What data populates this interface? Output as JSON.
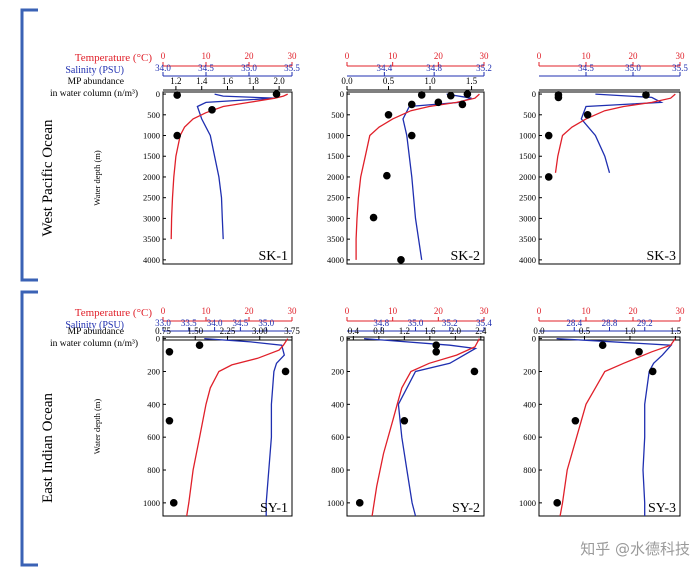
{
  "colors": {
    "temperature": "#e0202a",
    "salinity": "#1f2fb0",
    "abundance": "#000000",
    "bracket": "#3a62b5",
    "label_temp": "#e0202a",
    "label_sal": "#1f2fb0"
  },
  "legend": {
    "temp_label": "Temperature (°C)",
    "sal_label": "Salinity (PSU)",
    "mp_label_1": "MP abundance",
    "mp_label_2": "in water column (n/m³)"
  },
  "rows": [
    {
      "region": "West Pacific Ocean",
      "ylabel": "Water depth (m)"
    },
    {
      "region": "East Indian Ocean",
      "ylabel": "Water depth (m)"
    }
  ],
  "watermark": "知乎 @水德科技",
  "chart_data": [
    {
      "type": "line",
      "panel": "SK-1",
      "ylim": [
        4100,
        -50
      ],
      "yticks": [
        0,
        500,
        1000,
        1500,
        2000,
        2500,
        3000,
        3500,
        4000
      ],
      "temp_axis": {
        "range": [
          0,
          30
        ],
        "ticks": [
          0,
          10,
          20,
          30
        ]
      },
      "sal_axis": {
        "range": [
          34.0,
          35.5
        ],
        "ticks": [
          "34.0",
          "34.5",
          "35.0",
          "35.5"
        ]
      },
      "mp_axis": {
        "range": [
          1.1,
          2.1
        ],
        "ticks": [
          "1.2",
          "1.4",
          "1.6",
          "1.8",
          "2.0"
        ]
      },
      "temperature": [
        [
          29,
          0
        ],
        [
          28,
          50
        ],
        [
          26,
          100
        ],
        [
          20,
          200
        ],
        [
          14,
          300
        ],
        [
          10,
          450
        ],
        [
          7,
          600
        ],
        [
          5,
          800
        ],
        [
          4,
          1000
        ],
        [
          3,
          1500
        ],
        [
          2.5,
          2000
        ],
        [
          2.2,
          2500
        ],
        [
          2,
          3000
        ],
        [
          1.9,
          3500
        ]
      ],
      "salinity": [
        [
          34.6,
          0
        ],
        [
          34.7,
          50
        ],
        [
          35.3,
          100
        ],
        [
          34.5,
          200
        ],
        [
          34.4,
          300
        ],
        [
          34.45,
          600
        ],
        [
          34.55,
          1000
        ],
        [
          34.6,
          1500
        ],
        [
          34.65,
          2000
        ],
        [
          34.68,
          2500
        ],
        [
          34.69,
          3000
        ],
        [
          34.7,
          3500
        ]
      ],
      "abundance": [
        [
          1.98,
          0
        ],
        [
          1.21,
          25
        ],
        [
          1.48,
          380
        ],
        [
          1.21,
          1000
        ]
      ]
    },
    {
      "type": "line",
      "panel": "SK-2",
      "ylim": [
        4100,
        -50
      ],
      "yticks": [
        0,
        500,
        1000,
        1500,
        2000,
        2500,
        3000,
        3500,
        4000
      ],
      "temp_axis": {
        "range": [
          0,
          30
        ],
        "ticks": [
          0,
          10,
          20,
          30
        ]
      },
      "sal_axis": {
        "range": [
          34.1,
          35.2
        ],
        "ticks": [
          "34.4",
          "34.8",
          "35.2"
        ]
      },
      "mp_axis": {
        "range": [
          0.0,
          1.65
        ],
        "ticks": [
          "0.0",
          "0.5",
          "1.0",
          "1.5"
        ]
      },
      "temperature": [
        [
          29,
          0
        ],
        [
          28,
          100
        ],
        [
          24,
          200
        ],
        [
          18,
          300
        ],
        [
          14,
          400
        ],
        [
          10,
          600
        ],
        [
          7,
          800
        ],
        [
          5,
          1000
        ],
        [
          4,
          1500
        ],
        [
          3,
          2000
        ],
        [
          2.5,
          2500
        ],
        [
          2.2,
          3000
        ],
        [
          2,
          3500
        ],
        [
          2,
          4000
        ]
      ],
      "salinity": [
        [
          34.9,
          0
        ],
        [
          35.1,
          100
        ],
        [
          35.0,
          200
        ],
        [
          34.6,
          300
        ],
        [
          34.55,
          600
        ],
        [
          34.58,
          1000
        ],
        [
          34.62,
          2000
        ],
        [
          34.65,
          3000
        ],
        [
          34.7,
          4000
        ]
      ],
      "abundance": [
        [
          0.9,
          20
        ],
        [
          1.25,
          40
        ],
        [
          1.45,
          0
        ],
        [
          1.1,
          200
        ],
        [
          0.78,
          250
        ],
        [
          1.39,
          250
        ],
        [
          0.5,
          500
        ],
        [
          0.78,
          1000
        ],
        [
          0.48,
          1970
        ],
        [
          0.32,
          2980
        ],
        [
          0.65,
          4000
        ]
      ]
    },
    {
      "type": "line",
      "panel": "SK-3",
      "ylim": [
        4100,
        -50
      ],
      "yticks": [
        0,
        500,
        1000,
        1500,
        2000,
        2500,
        3000,
        3500,
        4000
      ],
      "temp_axis": {
        "range": [
          0,
          30
        ],
        "ticks": [
          0,
          10,
          20,
          30
        ]
      },
      "sal_axis": {
        "range": [
          34.0,
          35.5
        ],
        "ticks": [
          "34.5",
          "35.0",
          "35.5"
        ]
      },
      "mp_axis": {
        "range": [
          0,
          1.45
        ],
        "ticks": []
      },
      "temperature": [
        [
          29,
          0
        ],
        [
          28,
          100
        ],
        [
          24,
          200
        ],
        [
          18,
          300
        ],
        [
          14,
          400
        ],
        [
          10,
          600
        ],
        [
          7,
          800
        ],
        [
          5,
          1000
        ],
        [
          4,
          1500
        ],
        [
          3.5,
          1900
        ]
      ],
      "salinity": [
        [
          34.6,
          0
        ],
        [
          35.2,
          80
        ],
        [
          35.3,
          200
        ],
        [
          34.5,
          300
        ],
        [
          34.45,
          600
        ],
        [
          34.6,
          1000
        ],
        [
          34.7,
          1500
        ],
        [
          34.75,
          1900
        ]
      ],
      "abundance": [
        [
          0.2,
          20
        ],
        [
          0.2,
          80
        ],
        [
          1.1,
          20
        ],
        [
          0.5,
          500
        ],
        [
          0.1,
          1000
        ],
        [
          0.1,
          2000
        ]
      ]
    },
    {
      "type": "line",
      "panel": "SY-1",
      "ylim": [
        1080,
        -10
      ],
      "yticks": [
        0,
        200,
        400,
        600,
        800,
        1000
      ],
      "temp_axis": {
        "range": [
          0,
          30
        ],
        "ticks": [
          0,
          10,
          20,
          30
        ]
      },
      "sal_axis": {
        "range": [
          33.0,
          35.5
        ],
        "ticks": [
          "33.0",
          "33.5",
          "34.0",
          "34.5",
          "35.0"
        ]
      },
      "mp_axis": {
        "range": [
          0.75,
          3.75
        ],
        "ticks": [
          "0.75",
          "1.50",
          "2.25",
          "3.00",
          "3.75"
        ]
      },
      "temperature": [
        [
          29,
          0
        ],
        [
          28,
          40
        ],
        [
          27,
          70
        ],
        [
          22,
          120
        ],
        [
          16,
          160
        ],
        [
          13,
          200
        ],
        [
          11,
          300
        ],
        [
          10,
          400
        ],
        [
          8.5,
          600
        ],
        [
          7,
          800
        ],
        [
          6,
          1000
        ],
        [
          5.5,
          1080
        ]
      ],
      "salinity": [
        [
          33.8,
          0
        ],
        [
          34.7,
          20
        ],
        [
          35.3,
          40
        ],
        [
          35.35,
          100
        ],
        [
          35.2,
          150
        ],
        [
          35.15,
          200
        ],
        [
          35.1,
          400
        ],
        [
          35.1,
          600
        ],
        [
          35.05,
          800
        ],
        [
          35.0,
          1000
        ],
        [
          35.0,
          1080
        ]
      ],
      "abundance": [
        [
          1.6,
          40
        ],
        [
          0.9,
          80
        ],
        [
          3.6,
          200
        ],
        [
          0.9,
          500
        ],
        [
          1.0,
          1000
        ]
      ]
    },
    {
      "type": "line",
      "panel": "SY-2",
      "ylim": [
        1080,
        -10
      ],
      "yticks": [
        0,
        200,
        400,
        600,
        800,
        1000
      ],
      "temp_axis": {
        "range": [
          0,
          30
        ],
        "ticks": [
          0,
          10,
          20,
          30
        ]
      },
      "sal_axis": {
        "range": [
          34.6,
          35.4
        ],
        "ticks": [
          "34.8",
          "35.0",
          "35.2",
          "35.4"
        ]
      },
      "mp_axis": {
        "range": [
          0.3,
          2.45
        ],
        "ticks": [
          "0.4",
          "0.8",
          "1.2",
          "1.6",
          "2.0",
          "2.4"
        ]
      },
      "temperature": [
        [
          29,
          0
        ],
        [
          28,
          50
        ],
        [
          24,
          100
        ],
        [
          18,
          150
        ],
        [
          14,
          200
        ],
        [
          12,
          300
        ],
        [
          11,
          400
        ],
        [
          10,
          500
        ],
        [
          8,
          700
        ],
        [
          6.5,
          900
        ],
        [
          5.5,
          1080
        ]
      ],
      "salinity": [
        [
          34.7,
          0
        ],
        [
          35.2,
          40
        ],
        [
          35.35,
          60
        ],
        [
          35.2,
          150
        ],
        [
          35.0,
          200
        ],
        [
          34.9,
          400
        ],
        [
          34.92,
          600
        ],
        [
          34.95,
          800
        ],
        [
          34.98,
          1000
        ],
        [
          35.0,
          1080
        ]
      ],
      "abundance": [
        [
          1.7,
          40
        ],
        [
          1.7,
          80
        ],
        [
          2.3,
          200
        ],
        [
          1.2,
          500
        ],
        [
          0.5,
          1000
        ]
      ]
    },
    {
      "type": "line",
      "panel": "SY-3",
      "ylim": [
        1080,
        -10
      ],
      "yticks": [
        0,
        200,
        400,
        600,
        800,
        1000
      ],
      "temp_axis": {
        "range": [
          0,
          30
        ],
        "ticks": [
          0,
          10,
          20,
          30
        ]
      },
      "sal_axis": {
        "range": [
          28.0,
          29.6
        ],
        "ticks": [
          "28.4",
          "28.8",
          "29.2"
        ]
      },
      "mp_axis": {
        "range": [
          0,
          1.55
        ],
        "ticks": [
          "0.0",
          "0.5",
          "1.0",
          "1.5"
        ]
      },
      "temperature": [
        [
          29,
          0
        ],
        [
          28,
          40
        ],
        [
          24,
          80
        ],
        [
          18,
          150
        ],
        [
          14,
          200
        ],
        [
          12,
          300
        ],
        [
          10,
          400
        ],
        [
          8,
          600
        ],
        [
          6,
          800
        ],
        [
          5,
          1000
        ],
        [
          4.5,
          1080
        ]
      ],
      "salinity": [
        [
          28.2,
          0
        ],
        [
          29.5,
          40
        ],
        [
          29.4,
          100
        ],
        [
          29.3,
          150
        ],
        [
          29.25,
          200
        ],
        [
          29.2,
          400
        ],
        [
          29.2,
          600
        ],
        [
          29.18,
          800
        ],
        [
          29.2,
          1000
        ],
        [
          29.2,
          1080
        ]
      ],
      "abundance": [
        [
          0.7,
          40
        ],
        [
          1.1,
          80
        ],
        [
          1.25,
          200
        ],
        [
          0.4,
          500
        ],
        [
          0.2,
          1000
        ]
      ]
    }
  ]
}
